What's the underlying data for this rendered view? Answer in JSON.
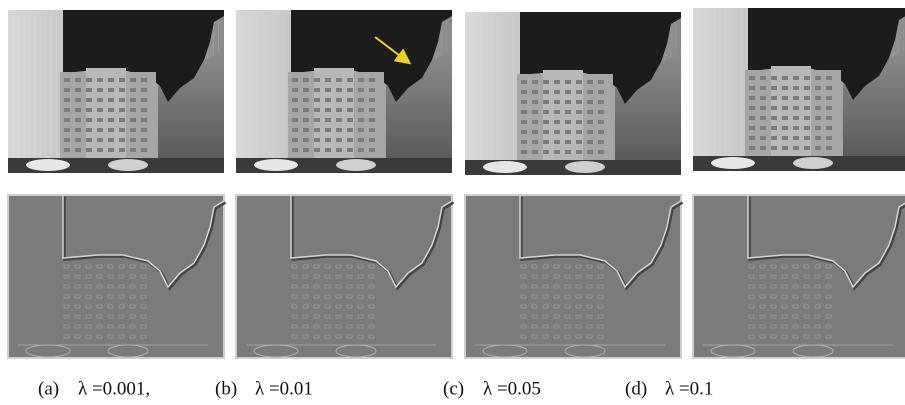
{
  "panels": [
    {
      "label": "(a)",
      "param": "λ =0.001,"
    },
    {
      "label": "(b)",
      "param": "λ =0.01"
    },
    {
      "label": "(c)",
      "param": "λ =0.05"
    },
    {
      "label": "(d)",
      "param": "λ =0.1"
    }
  ]
}
